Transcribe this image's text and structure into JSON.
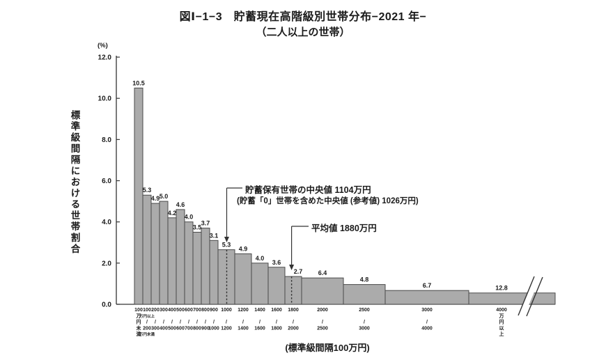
{
  "chart_data": {
    "type": "bar",
    "title": "図Ⅰ−1−3　貯蓄現在高階級別世帯分布−2021 年−",
    "subtitle": "（二人以上の世帯）",
    "ylabel": "標準級間隔における世帯割合",
    "y_unit": "(%)",
    "xlabel": "(標準級間隔100万円)",
    "ylim": [
      0.0,
      12.0
    ],
    "yticks": [
      "12.0",
      "10.0",
      "8.0",
      "6.0",
      "4.0",
      "2.0",
      "0.0"
    ],
    "grid": false,
    "legend": false,
    "note": "bar height = household share (%) per standard class interval of 100万円; printed value = total % of households in the class",
    "bars": [
      {
        "min": 0,
        "max": 100,
        "value": 10.5,
        "tick_lines": [
          "100",
          "万",
          "円",
          "未",
          "満"
        ]
      },
      {
        "min": 100,
        "max": 200,
        "value": 5.3,
        "tick_lines": [
          "100",
          "万円以上",
          "/",
          "200",
          "万円未満"
        ]
      },
      {
        "min": 200,
        "max": 300,
        "value": 4.9,
        "tick_lines": [
          "200",
          "",
          "/",
          "300",
          ""
        ]
      },
      {
        "min": 300,
        "max": 400,
        "value": 5.0,
        "tick_lines": [
          "300",
          "",
          "/",
          "400",
          ""
        ]
      },
      {
        "min": 400,
        "max": 500,
        "value": 4.2,
        "tick_lines": [
          "400",
          "",
          "/",
          "500",
          ""
        ]
      },
      {
        "min": 500,
        "max": 600,
        "value": 4.6,
        "tick_lines": [
          "500",
          "",
          "/",
          "600",
          ""
        ]
      },
      {
        "min": 600,
        "max": 700,
        "value": 4.0,
        "tick_lines": [
          "600",
          "",
          "/",
          "700",
          ""
        ]
      },
      {
        "min": 700,
        "max": 800,
        "value": 3.5,
        "tick_lines": [
          "700",
          "",
          "/",
          "800",
          ""
        ]
      },
      {
        "min": 800,
        "max": 900,
        "value": 3.7,
        "tick_lines": [
          "800",
          "",
          "/",
          "900",
          ""
        ]
      },
      {
        "min": 900,
        "max": 1000,
        "value": 3.1,
        "tick_lines": [
          "900",
          "",
          "/",
          "1000",
          ""
        ]
      },
      {
        "min": 1000,
        "max": 1200,
        "value": 5.3,
        "tick_lines": [
          "1000",
          "",
          "/",
          "1200",
          ""
        ]
      },
      {
        "min": 1200,
        "max": 1400,
        "value": 4.9,
        "tick_lines": [
          "1200",
          "",
          "/",
          "1400",
          ""
        ]
      },
      {
        "min": 1400,
        "max": 1600,
        "value": 4.0,
        "tick_lines": [
          "1400",
          "",
          "/",
          "1600",
          ""
        ]
      },
      {
        "min": 1600,
        "max": 1800,
        "value": 3.6,
        "tick_lines": [
          "1600",
          "",
          "/",
          "1800",
          ""
        ]
      },
      {
        "min": 1800,
        "max": 2000,
        "value": 2.7,
        "tick_lines": [
          "1800",
          "",
          "/",
          "2000",
          ""
        ],
        "label_dx": 7
      },
      {
        "min": 2000,
        "max": 2500,
        "value": 6.4,
        "tick_lines": [
          "2000",
          "",
          "/",
          "2500",
          ""
        ]
      },
      {
        "min": 2500,
        "max": 3000,
        "value": 4.8,
        "tick_lines": [
          "2500",
          "",
          "/",
          "3000",
          ""
        ]
      },
      {
        "min": 3000,
        "max": 4000,
        "value": 6.7,
        "tick_lines": [
          "3000",
          "",
          "/",
          "4000",
          ""
        ]
      },
      {
        "min": 4000,
        "max": null,
        "value": 12.8,
        "tick_lines": [
          "4000",
          "万",
          "円",
          "以",
          "上"
        ],
        "broken": true,
        "label_dx": -15,
        "tick_dx": -15
      }
    ],
    "annotations": {
      "median": {
        "line1": "貯蓄保有世帯の中央値 1104万円",
        "line2": "(貯蓄「0」世帯を含めた中央値 (参考値)  1026万円)",
        "value_manen": 1104
      },
      "mean": {
        "label": "平均値 1880万円",
        "value_manen": 1880
      }
    },
    "colors": {
      "bar_fill": "#ababab",
      "bar_stroke": "#4a4a4a",
      "axis": "#333333",
      "text": "#1a1a1a",
      "dash": "#333333"
    }
  }
}
